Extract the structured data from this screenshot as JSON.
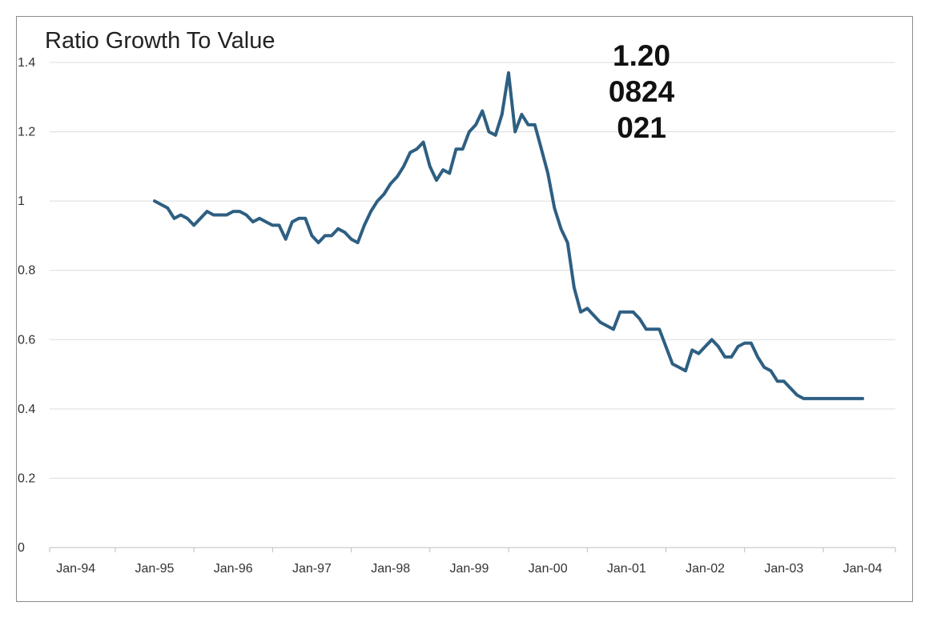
{
  "chart_data": {
    "type": "line",
    "title": "Ratio Growth To Value",
    "xlabel": "",
    "ylabel": "",
    "ylim": [
      0,
      1.4
    ],
    "yticks": [
      "0",
      "0.2",
      "0.4",
      "0.6",
      "0.8",
      "1",
      "1.2",
      "1.4"
    ],
    "xticks": [
      "Jan-94",
      "Jan-95",
      "Jan-96",
      "Jan-97",
      "Jan-98",
      "Jan-99",
      "Jan-00",
      "Jan-01",
      "Jan-02",
      "Jan-03",
      "Jan-04"
    ],
    "xlim": [
      "1993-09",
      "2004-06"
    ],
    "grid": true,
    "legend": "none",
    "line_color": "#2e5f82",
    "annotation": {
      "lines": [
        "1.20",
        "0824",
        "021"
      ],
      "anchor_x": "2000-06"
    },
    "series": [
      {
        "x": [
          "1995-01",
          "1995-02",
          "1995-03",
          "1995-04",
          "1995-05",
          "1995-06",
          "1995-07",
          "1995-08",
          "1995-09",
          "1995-10",
          "1995-11",
          "1995-12",
          "1996-01",
          "1996-02",
          "1996-03",
          "1996-04",
          "1996-05",
          "1996-06",
          "1996-07",
          "1996-08",
          "1996-09",
          "1996-10",
          "1996-11",
          "1996-12",
          "1997-01",
          "1997-02",
          "1997-03",
          "1997-04",
          "1997-05",
          "1997-06",
          "1997-07",
          "1997-08",
          "1997-09",
          "1997-10",
          "1997-11",
          "1997-12",
          "1998-01",
          "1998-02",
          "1998-03",
          "1998-04",
          "1998-05",
          "1998-06",
          "1998-07",
          "1998-08",
          "1998-09",
          "1998-10",
          "1998-11",
          "1998-12",
          "1999-01",
          "1999-02",
          "1999-03",
          "1999-04",
          "1999-05",
          "1999-06",
          "1999-07",
          "1999-08",
          "1999-09",
          "1999-10",
          "1999-11",
          "1999-12",
          "2000-01",
          "2000-02",
          "2000-03",
          "2000-04",
          "2000-05",
          "2000-06",
          "2000-07",
          "2000-08",
          "2000-09",
          "2000-10",
          "2000-11",
          "2000-12",
          "2001-01",
          "2001-02",
          "2001-03",
          "2001-04",
          "2001-05",
          "2001-06",
          "2001-07",
          "2001-08",
          "2001-09",
          "2001-10",
          "2001-11",
          "2001-12",
          "2002-01",
          "2002-02",
          "2002-03",
          "2002-04",
          "2002-05",
          "2002-06",
          "2002-07",
          "2002-08",
          "2002-09",
          "2002-10",
          "2002-11",
          "2002-12",
          "2003-01",
          "2003-02",
          "2003-03",
          "2003-04",
          "2003-05",
          "2003-06",
          "2003-07",
          "2003-08",
          "2003-09",
          "2003-10",
          "2003-11",
          "2003-12",
          "2004-01"
        ],
        "values": [
          1.0,
          0.99,
          0.98,
          0.95,
          0.96,
          0.95,
          0.93,
          0.95,
          0.97,
          0.96,
          0.96,
          0.96,
          0.97,
          0.97,
          0.96,
          0.94,
          0.95,
          0.94,
          0.93,
          0.93,
          0.89,
          0.94,
          0.95,
          0.95,
          0.9,
          0.88,
          0.9,
          0.9,
          0.92,
          0.91,
          0.89,
          0.88,
          0.93,
          0.97,
          1.0,
          1.02,
          1.05,
          1.07,
          1.1,
          1.14,
          1.15,
          1.17,
          1.1,
          1.06,
          1.09,
          1.08,
          1.15,
          1.15,
          1.2,
          1.22,
          1.26,
          1.2,
          1.19,
          1.25,
          1.37,
          1.2,
          1.25,
          1.22,
          1.22,
          1.15,
          1.08,
          0.98,
          0.92,
          0.88,
          0.75,
          0.68,
          0.69,
          0.67,
          0.65,
          0.64,
          0.63,
          0.68,
          0.68,
          0.68,
          0.66,
          0.63,
          0.63,
          0.63,
          0.58,
          0.53,
          0.52,
          0.51,
          0.57,
          0.56,
          0.58,
          0.6,
          0.58,
          0.55,
          0.55,
          0.58,
          0.59,
          0.59,
          0.55,
          0.52,
          0.51,
          0.48,
          0.48,
          0.46,
          0.44,
          0.43,
          0.43,
          0.43,
          0.43,
          0.43,
          0.43,
          0.43,
          0.43,
          0.43,
          0.43
        ]
      }
    ]
  }
}
